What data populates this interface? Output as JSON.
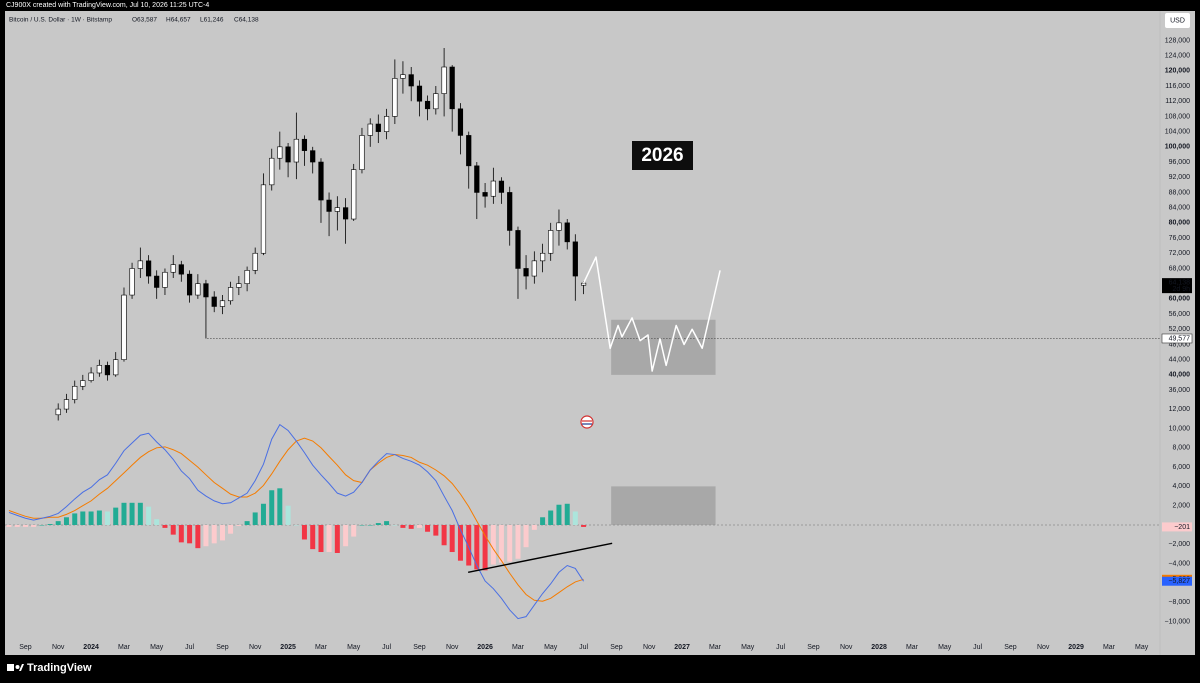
{
  "chart_data": {
    "type": "candlestick",
    "header": "CJ900X created with TradingView.com, Jul 10, 2026 11:25 UTC-4",
    "symbol": "Bitcoin / U.S. Dollar · 1W · Bitstamp",
    "ohlc_labels": [
      "O63,587",
      "H64,657",
      "L61,246",
      "C64,138"
    ],
    "currency": "USD",
    "annotation": "2026",
    "brand": "TradingView",
    "grid": false,
    "up_color": "#ffffff",
    "down_color": "#000000",
    "x": [
      2023.833,
      2023.875,
      2023.917,
      2023.958,
      2024.0,
      2024.042,
      2024.083,
      2024.125,
      2024.167,
      2024.208,
      2024.25,
      2024.292,
      2024.333,
      2024.375,
      2024.417,
      2024.458,
      2024.5,
      2024.542,
      2024.583,
      2024.625,
      2024.667,
      2024.708,
      2024.75,
      2024.792,
      2024.833,
      2024.875,
      2024.917,
      2024.958,
      2025.0,
      2025.042,
      2025.083,
      2025.125,
      2025.167,
      2025.208,
      2025.25,
      2025.292,
      2025.333,
      2025.375,
      2025.417,
      2025.458,
      2025.5,
      2025.542,
      2025.583,
      2025.625,
      2025.667,
      2025.708,
      2025.75,
      2025.792,
      2025.833,
      2025.875,
      2025.917,
      2025.958,
      2026.0,
      2026.042,
      2026.083,
      2026.125,
      2026.167,
      2026.208,
      2026.25,
      2026.292,
      2026.333,
      2026.375,
      2026.417,
      2026.458,
      2026.5
    ],
    "open": [
      29500,
      31000,
      33500,
      37000,
      38500,
      40500,
      42500,
      40000,
      44000,
      61000,
      68000,
      70000,
      66000,
      63000,
      67000,
      69000,
      66500,
      61000,
      64000,
      60500,
      58000,
      59500,
      63000,
      64000,
      67500,
      72000,
      90000,
      97000,
      100000,
      96000,
      102000,
      99000,
      96000,
      86000,
      83000,
      84000,
      81000,
      94000,
      103000,
      106000,
      104000,
      108000,
      118000,
      119000,
      116000,
      112000,
      110000,
      114000,
      121000,
      110000,
      103000,
      95000,
      88000,
      87000,
      91000,
      88000,
      78000,
      68000,
      66000,
      70000,
      72000,
      78000,
      80000,
      75000,
      63587
    ],
    "high": [
      32500,
      35000,
      38500,
      40000,
      42000,
      44000,
      43500,
      46000,
      63000,
      69500,
      73500,
      71500,
      67500,
      68000,
      71500,
      70000,
      67500,
      66500,
      65000,
      62000,
      61000,
      64500,
      66000,
      68500,
      73500,
      93000,
      99500,
      104000,
      101000,
      109000,
      103000,
      100000,
      97000,
      88000,
      87000,
      86500,
      95500,
      105000,
      107500,
      108500,
      110000,
      123000,
      122500,
      121000,
      117500,
      113500,
      116000,
      126000,
      121500,
      111500,
      104000,
      96000,
      90500,
      94500,
      92000,
      89500,
      79000,
      71500,
      72500,
      74500,
      80000,
      83500,
      81000,
      77000,
      64657
    ],
    "low": [
      28000,
      30000,
      32500,
      36000,
      38000,
      39500,
      38500,
      39500,
      43500,
      60000,
      65500,
      64000,
      60000,
      61000,
      65500,
      64500,
      59000,
      60000,
      49577,
      56500,
      56000,
      58500,
      61000,
      62000,
      66500,
      71500,
      88500,
      94000,
      92000,
      91500,
      95000,
      93000,
      80000,
      76500,
      78000,
      74500,
      80500,
      93000,
      100000,
      101000,
      102000,
      106000,
      114000,
      112000,
      108000,
      107000,
      108500,
      108000,
      104000,
      98000,
      89000,
      81000,
      84000,
      85000,
      85000,
      74000,
      60000,
      62500,
      64000,
      67000,
      70000,
      74000,
      73000,
      59500,
      61246
    ],
    "close": [
      31000,
      33500,
      37000,
      38500,
      40500,
      42500,
      40000,
      44000,
      61000,
      68000,
      70000,
      66000,
      63000,
      67000,
      69000,
      66500,
      61000,
      64000,
      60500,
      58000,
      59500,
      63000,
      64000,
      67500,
      72000,
      90000,
      97000,
      100000,
      96000,
      102000,
      99000,
      96000,
      86000,
      83000,
      84000,
      81000,
      94000,
      103000,
      106000,
      104000,
      108000,
      118000,
      119000,
      116000,
      112000,
      110000,
      114000,
      121000,
      110000,
      103000,
      95000,
      88000,
      87000,
      91000,
      88000,
      78000,
      68000,
      66000,
      70000,
      72000,
      78000,
      80000,
      75000,
      66000,
      64138
    ],
    "xlim": [
      2023.563,
      2029.426
    ],
    "xticks": [
      {
        "value": 2023.667,
        "label": "Sep"
      },
      {
        "value": 2023.833,
        "label": "Nov"
      },
      2024,
      {
        "value": 2024.167,
        "label": "Mar"
      },
      {
        "value": 2024.333,
        "label": "May"
      },
      {
        "value": 2024.5,
        "label": "Jul"
      },
      {
        "value": 2024.667,
        "label": "Sep"
      },
      {
        "value": 2024.833,
        "label": "Nov"
      },
      2025,
      {
        "value": 2025.167,
        "label": "Mar"
      },
      {
        "value": 2025.333,
        "label": "May"
      },
      {
        "value": 2025.5,
        "label": "Jul"
      },
      {
        "value": 2025.667,
        "label": "Sep"
      },
      {
        "value": 2025.833,
        "label": "Nov"
      },
      2026,
      {
        "value": 2026.167,
        "label": "Mar"
      },
      {
        "value": 2026.333,
        "label": "May"
      },
      {
        "value": 2026.5,
        "label": "Jul"
      },
      {
        "value": 2026.667,
        "label": "Sep"
      },
      {
        "value": 2026.833,
        "label": "Nov"
      },
      2027,
      {
        "value": 2027.167,
        "label": "Mar"
      },
      {
        "value": 2027.333,
        "label": "May"
      },
      {
        "value": 2027.5,
        "label": "Jul"
      },
      {
        "value": 2027.667,
        "label": "Sep"
      },
      {
        "value": 2027.833,
        "label": "Nov"
      },
      2028,
      {
        "value": 2028.167,
        "label": "Mar"
      },
      {
        "value": 2028.333,
        "label": "May"
      },
      {
        "value": 2028.5,
        "label": "Jul"
      },
      {
        "value": 2028.667,
        "label": "Sep"
      },
      {
        "value": 2028.833,
        "label": "Nov"
      },
      2029,
      {
        "value": 2029.167,
        "label": "Mar"
      },
      {
        "value": 2029.333,
        "label": "May"
      }
    ],
    "ylim": [
      -33700,
      136000
    ],
    "yticks": [
      {
        "value": 36000,
        "label": "36,000"
      },
      {
        "value": 40000,
        "label": "40,000"
      },
      {
        "value": 44000,
        "label": "44,000"
      },
      {
        "value": 48000,
        "label": "48,000"
      },
      {
        "value": 52000,
        "label": "52,000"
      },
      {
        "value": 56000,
        "label": "56,000"
      },
      {
        "value": 60000,
        "label": "60,000"
      },
      {
        "value": 64000,
        "label": "64,000"
      },
      {
        "value": 68000,
        "label": "68,000"
      },
      {
        "value": 72000,
        "label": "72,000"
      },
      {
        "value": 76000,
        "label": "76,000"
      },
      {
        "value": 80000,
        "label": "80,000"
      },
      {
        "value": 84000,
        "label": "84,000"
      },
      {
        "value": 88000,
        "label": "88,000"
      },
      {
        "value": 92000,
        "label": "92,000"
      },
      {
        "value": 96000,
        "label": "96,000"
      },
      {
        "value": 100000,
        "label": "100,000"
      },
      {
        "value": 104000,
        "label": "104,000"
      },
      {
        "value": 108000,
        "label": "108,000"
      },
      {
        "value": 112000,
        "label": "112,000"
      },
      {
        "value": 116000,
        "label": "116,000"
      },
      {
        "value": 120000,
        "label": "120,000"
      },
      {
        "value": 124000,
        "label": "124,000"
      },
      {
        "value": 128000,
        "label": "128,000"
      }
    ],
    "last_price": {
      "value": 64138,
      "label": "64,138",
      "countdown": "2d 9h"
    },
    "level": {
      "value": 49577,
      "label": "49,577",
      "x_start": 2024.589
    },
    "projection": {
      "color": "#ffffff",
      "x": [
        2026.5,
        2026.563,
        2026.635,
        2026.675,
        2026.695,
        2026.746,
        2026.787,
        2026.827,
        2026.848,
        2026.888,
        2026.919,
        2026.97,
        2027.01,
        2027.051,
        2027.102,
        2027.193
      ],
      "y": [
        64138,
        71000,
        47000,
        53000,
        50000,
        55000,
        49000,
        50500,
        41000,
        49500,
        42500,
        53000,
        48000,
        52000,
        47000,
        67500
      ]
    },
    "zones": [
      {
        "pane": "price",
        "color": "#9e9e9e",
        "x": [
          2026.64,
          2027.17
        ],
        "y": [
          40000,
          54500
        ]
      },
      {
        "pane": "macd",
        "color": "#9e9e9e",
        "x": [
          2026.64,
          2027.17
        ],
        "y": [
          0,
          4000
        ]
      }
    ],
    "macd": {
      "x": [
        2023.583,
        2023.625,
        2023.667,
        2023.708,
        2023.75,
        2023.792,
        2023.833,
        2023.875,
        2023.917,
        2023.958,
        2024.0,
        2024.042,
        2024.083,
        2024.125,
        2024.167,
        2024.208,
        2024.25,
        2024.292,
        2024.333,
        2024.375,
        2024.417,
        2024.458,
        2024.5,
        2024.542,
        2024.583,
        2024.625,
        2024.667,
        2024.708,
        2024.75,
        2024.792,
        2024.833,
        2024.875,
        2024.917,
        2024.958,
        2025.0,
        2025.042,
        2025.083,
        2025.125,
        2025.167,
        2025.208,
        2025.25,
        2025.292,
        2025.333,
        2025.375,
        2025.417,
        2025.458,
        2025.5,
        2025.542,
        2025.583,
        2025.625,
        2025.667,
        2025.708,
        2025.75,
        2025.792,
        2025.833,
        2025.875,
        2025.917,
        2025.958,
        2026.0,
        2026.042,
        2026.083,
        2026.125,
        2026.167,
        2026.208,
        2026.25,
        2026.292,
        2026.333,
        2026.375,
        2026.417,
        2026.458,
        2026.5
      ],
      "macd": {
        "color": "#4a6fe3",
        "values": [
          1300,
          1000,
          700,
          500,
          700,
          900,
          1200,
          1900,
          2700,
          3400,
          3900,
          4700,
          5200,
          6400,
          7700,
          8500,
          9300,
          9500,
          8600,
          7800,
          6800,
          5600,
          4800,
          3600,
          3000,
          2500,
          2200,
          2300,
          2800,
          3300,
          4600,
          6300,
          8900,
          10400,
          9800,
          8700,
          7500,
          6200,
          5200,
          4300,
          3300,
          3000,
          3400,
          4400,
          5700,
          6600,
          7400,
          7300,
          6900,
          6600,
          6200,
          5500,
          4600,
          3000,
          1500,
          -500,
          -2300,
          -4200,
          -5800,
          -6600,
          -7600,
          -8800,
          -9700,
          -9500,
          -8300,
          -7100,
          -6100,
          -4900,
          -4200,
          -4500,
          -5827
        ]
      },
      "signal": {
        "color": "#f57c00",
        "values": [
          1500,
          1200,
          900,
          700,
          700,
          800,
          800,
          1100,
          1500,
          2000,
          2500,
          3200,
          3800,
          4600,
          5400,
          6200,
          7000,
          7600,
          8000,
          8100,
          7800,
          7400,
          6700,
          6000,
          5200,
          4400,
          3800,
          3200,
          2900,
          2900,
          3300,
          4100,
          5300,
          6600,
          7800,
          8700,
          9000,
          8700,
          8000,
          7100,
          6200,
          5200,
          4600,
          4400,
          5700,
          6400,
          7000,
          7300,
          7200,
          7000,
          6500,
          6200,
          5700,
          5100,
          4300,
          3200,
          1900,
          400,
          -1100,
          -2500,
          -3700,
          -5000,
          -6200,
          -7200,
          -7800,
          -7900,
          -7600,
          -7000,
          -6400,
          -5900,
          -5626
        ]
      },
      "histogram": {
        "up_color": "#22ab94",
        "up_fading_color": "#ace5dc",
        "down_color": "#f23645",
        "down_fading_color": "#fccbcd",
        "values": [
          -200,
          -200,
          -200,
          -200,
          0,
          100,
          400,
          800,
          1200,
          1400,
          1400,
          1500,
          1400,
          1800,
          2300,
          2300,
          2300,
          1900,
          600,
          -300,
          -1000,
          -1800,
          -1900,
          -2400,
          -2200,
          -1900,
          -1600,
          -900,
          -100,
          400,
          1300,
          2200,
          3600,
          3800,
          2000,
          0,
          -1500,
          -2500,
          -2800,
          -2800,
          -2900,
          -2200,
          -1200,
          0,
          0,
          200,
          400,
          0,
          -300,
          -400,
          -300,
          -700,
          -1100,
          -2100,
          -2800,
          -3700,
          -4200,
          -4600,
          -4700,
          -4100,
          -3900,
          -3800,
          -3500,
          -2300,
          -500,
          800,
          1500,
          2100,
          2200,
          1400,
          -201
        ]
      },
      "trendline": {
        "color": "#000000",
        "x": [
          2025.914,
          2026.645
        ],
        "y": [
          -4900,
          -1900
        ]
      },
      "ylim": [
        -13472,
        53368
      ],
      "yticks": [
        {
          "value": 12000,
          "label": "12,000"
        },
        {
          "value": 10000,
          "label": "10,000"
        },
        {
          "value": 8000,
          "label": "8,000"
        },
        {
          "value": 6000,
          "label": "6,000"
        },
        {
          "value": 4000,
          "label": "4,000"
        },
        {
          "value": 2000,
          "label": "2,000"
        },
        {
          "value": -2000,
          "label": "−2,000"
        },
        {
          "value": -4000,
          "label": "−4,000"
        },
        {
          "value": -8000,
          "label": "−8,000"
        },
        {
          "value": -10000,
          "label": "−10,000"
        }
      ],
      "labels": [
        {
          "value": -201,
          "label": "−201",
          "color": "#fccbcd",
          "text_color": "#b71c1c"
        },
        {
          "value": -5626,
          "label": "−5,626",
          "color": "#f57c00",
          "text_color": "#ffffff"
        },
        {
          "value": -5827,
          "label": "−5,827",
          "color": "#2962ff",
          "text_color": "#ffffff"
        }
      ]
    }
  }
}
